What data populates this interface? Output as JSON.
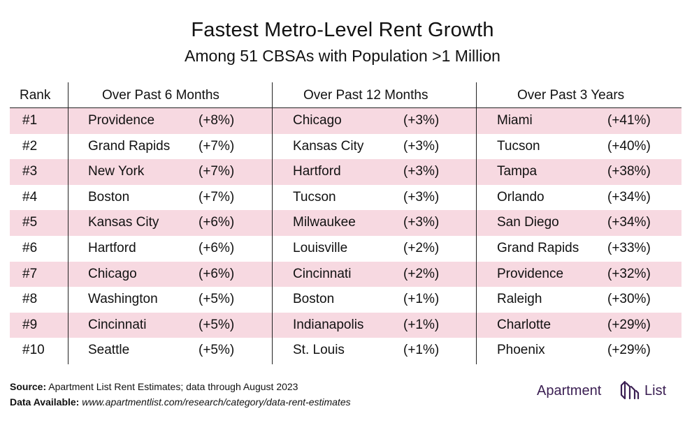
{
  "header": {
    "title": "Fastest Metro-Level Rent Growth",
    "subtitle": "Among 51 CBSAs with Population >1 Million"
  },
  "chart_data": {
    "type": "table",
    "columns": [
      "Rank",
      "Over Past 6 Months",
      "Over Past 12 Months",
      "Over Past 3 Years"
    ],
    "rows": [
      {
        "rank": "#1",
        "m6_city": "Providence",
        "m6_val": "(+8%)",
        "m12_city": "Chicago",
        "m12_val": "(+3%)",
        "y3_city": "Miami",
        "y3_val": "(+41%)"
      },
      {
        "rank": "#2",
        "m6_city": "Grand Rapids",
        "m6_val": "(+7%)",
        "m12_city": "Kansas City",
        "m12_val": "(+3%)",
        "y3_city": "Tucson",
        "y3_val": "(+40%)"
      },
      {
        "rank": "#3",
        "m6_city": "New York",
        "m6_val": "(+7%)",
        "m12_city": "Hartford",
        "m12_val": "(+3%)",
        "y3_city": "Tampa",
        "y3_val": "(+38%)"
      },
      {
        "rank": "#4",
        "m6_city": "Boston",
        "m6_val": "(+7%)",
        "m12_city": "Tucson",
        "m12_val": "(+3%)",
        "y3_city": "Orlando",
        "y3_val": "(+34%)"
      },
      {
        "rank": "#5",
        "m6_city": "Kansas City",
        "m6_val": "(+6%)",
        "m12_city": "Milwaukee",
        "m12_val": "(+3%)",
        "y3_city": "San Diego",
        "y3_val": "(+34%)"
      },
      {
        "rank": "#6",
        "m6_city": "Hartford",
        "m6_val": "(+6%)",
        "m12_city": "Louisville",
        "m12_val": "(+2%)",
        "y3_city": "Grand Rapids",
        "y3_val": "(+33%)"
      },
      {
        "rank": "#7",
        "m6_city": "Chicago",
        "m6_val": "(+6%)",
        "m12_city": "Cincinnati",
        "m12_val": "(+2%)",
        "y3_city": "Providence",
        "y3_val": "(+32%)"
      },
      {
        "rank": "#8",
        "m6_city": "Washington",
        "m6_val": "(+5%)",
        "m12_city": "Boston",
        "m12_val": "(+1%)",
        "y3_city": "Raleigh",
        "y3_val": "(+30%)"
      },
      {
        "rank": "#9",
        "m6_city": "Cincinnati",
        "m6_val": "(+5%)",
        "m12_city": "Indianapolis",
        "m12_val": "(+1%)",
        "y3_city": "Charlotte",
        "y3_val": "(+29%)"
      },
      {
        "rank": "#10",
        "m6_city": "Seattle",
        "m6_val": "(+5%)",
        "m12_city": "St. Louis",
        "m12_val": "(+1%)",
        "y3_city": "Phoenix",
        "y3_val": "(+29%)"
      }
    ],
    "striped_row_color": "#f7d9e1"
  },
  "footer": {
    "source_label": "Source:",
    "source_text": "Apartment List Rent Estimates; data through August 2023",
    "data_label": "Data Available:",
    "data_url": "www.apartmentlist.com/research/category/data-rent-estimates"
  },
  "logo": {
    "word1": "Apartment",
    "word2": "List",
    "icon": "apartment-list-logo-icon",
    "color": "#3a1e52"
  }
}
